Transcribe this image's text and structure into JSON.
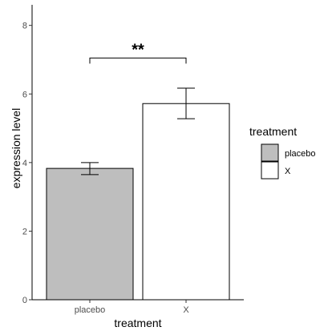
{
  "chart_data": {
    "type": "bar",
    "categories": [
      "placebo",
      "X"
    ],
    "values": [
      3.83,
      5.72
    ],
    "error_low": [
      3.65,
      5.28
    ],
    "error_high": [
      4.0,
      6.17
    ],
    "fill_colors": [
      "#bebebe",
      "#ffffff"
    ],
    "xlabel": "treatment",
    "ylabel": "expression level",
    "ylim": [
      0,
      8.6
    ],
    "yticks": [
      0,
      2,
      4,
      6,
      8
    ],
    "grid": false,
    "legend": {
      "title": "treatment",
      "position": "right",
      "entries": [
        "placebo",
        "X"
      ]
    },
    "significance": {
      "label": "**",
      "from": "placebo",
      "to": "X",
      "y": 7.05
    }
  }
}
